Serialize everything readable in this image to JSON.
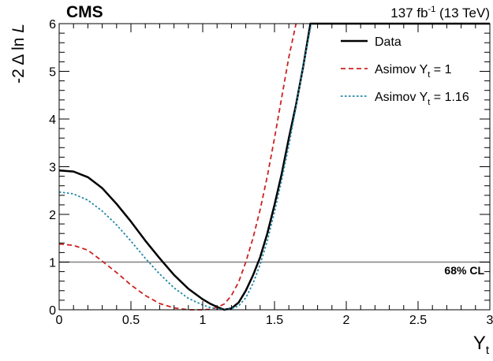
{
  "chart_data": {
    "type": "line",
    "experiment": "CMS",
    "lumi_label": "137 fb",
    "lumi_exp": "-1",
    "energy_label": " (13 TeV)",
    "ylabel_prefix": "-2 Δ ln ",
    "ylabel_var": "L",
    "xlabel_main": "Y",
    "xlabel_sub": "t",
    "xlim": [
      0,
      3
    ],
    "ylim": [
      0,
      6
    ],
    "x_ticks": [
      "0",
      "0.5",
      "1",
      "1.5",
      "2",
      "2.5",
      "3"
    ],
    "y_ticks": [
      "0",
      "1",
      "2",
      "3",
      "4",
      "5",
      "6"
    ],
    "cl_line": {
      "y": 1,
      "label": "68% CL",
      "color": "#808080"
    },
    "legend_position": "top-right",
    "series": [
      {
        "name": "Data",
        "color": "#000000",
        "style": "solid",
        "points": [
          [
            0.0,
            2.92
          ],
          [
            0.1,
            2.9
          ],
          [
            0.2,
            2.78
          ],
          [
            0.3,
            2.55
          ],
          [
            0.4,
            2.22
          ],
          [
            0.5,
            1.85
          ],
          [
            0.6,
            1.45
          ],
          [
            0.7,
            1.08
          ],
          [
            0.8,
            0.73
          ],
          [
            0.9,
            0.44
          ],
          [
            1.0,
            0.22
          ],
          [
            1.05,
            0.13
          ],
          [
            1.1,
            0.06
          ],
          [
            1.15,
            0.0
          ],
          [
            1.2,
            0.03
          ],
          [
            1.25,
            0.15
          ],
          [
            1.3,
            0.4
          ],
          [
            1.35,
            0.72
          ],
          [
            1.4,
            1.1
          ],
          [
            1.45,
            1.6
          ],
          [
            1.5,
            2.2
          ],
          [
            1.55,
            2.85
          ],
          [
            1.6,
            3.6
          ],
          [
            1.65,
            4.3
          ],
          [
            1.7,
            5.1
          ],
          [
            1.75,
            6.0
          ],
          [
            1.77,
            6.0
          ],
          [
            3.0,
            6.0
          ]
        ]
      },
      {
        "name": "Asimov Y_t = 1",
        "legend_main": "Asimov Y",
        "legend_sub": "t",
        "legend_tail": " = 1",
        "color": "#cc2222",
        "style": "dashed",
        "points": [
          [
            0.0,
            1.38
          ],
          [
            0.1,
            1.35
          ],
          [
            0.2,
            1.25
          ],
          [
            0.3,
            1.02
          ],
          [
            0.4,
            0.78
          ],
          [
            0.5,
            0.52
          ],
          [
            0.6,
            0.3
          ],
          [
            0.7,
            0.13
          ],
          [
            0.8,
            0.04
          ],
          [
            0.9,
            0.0
          ],
          [
            1.0,
            0.0
          ],
          [
            1.05,
            0.01
          ],
          [
            1.1,
            0.05
          ],
          [
            1.15,
            0.12
          ],
          [
            1.2,
            0.3
          ],
          [
            1.25,
            0.58
          ],
          [
            1.3,
            1.0
          ],
          [
            1.35,
            1.5
          ],
          [
            1.4,
            2.1
          ],
          [
            1.45,
            2.8
          ],
          [
            1.5,
            3.6
          ],
          [
            1.55,
            4.45
          ],
          [
            1.6,
            5.3
          ],
          [
            1.65,
            6.0
          ]
        ]
      },
      {
        "name": "Asimov Y_t = 1.16",
        "legend_main": "Asimov Y",
        "legend_sub": "t",
        "legend_tail": " = 1.16",
        "color": "#2288aa",
        "style": "dotted",
        "points": [
          [
            0.0,
            2.47
          ],
          [
            0.1,
            2.43
          ],
          [
            0.2,
            2.3
          ],
          [
            0.3,
            2.07
          ],
          [
            0.4,
            1.78
          ],
          [
            0.5,
            1.44
          ],
          [
            0.6,
            1.08
          ],
          [
            0.7,
            0.75
          ],
          [
            0.8,
            0.46
          ],
          [
            0.9,
            0.24
          ],
          [
            1.0,
            0.1
          ],
          [
            1.05,
            0.05
          ],
          [
            1.1,
            0.02
          ],
          [
            1.16,
            0.0
          ],
          [
            1.2,
            0.02
          ],
          [
            1.25,
            0.08
          ],
          [
            1.3,
            0.25
          ],
          [
            1.35,
            0.55
          ],
          [
            1.4,
            0.95
          ],
          [
            1.45,
            1.45
          ],
          [
            1.5,
            2.05
          ],
          [
            1.55,
            2.72
          ],
          [
            1.6,
            3.45
          ],
          [
            1.65,
            4.25
          ],
          [
            1.7,
            5.1
          ],
          [
            1.75,
            5.9
          ],
          [
            1.76,
            6.0
          ]
        ]
      }
    ]
  }
}
